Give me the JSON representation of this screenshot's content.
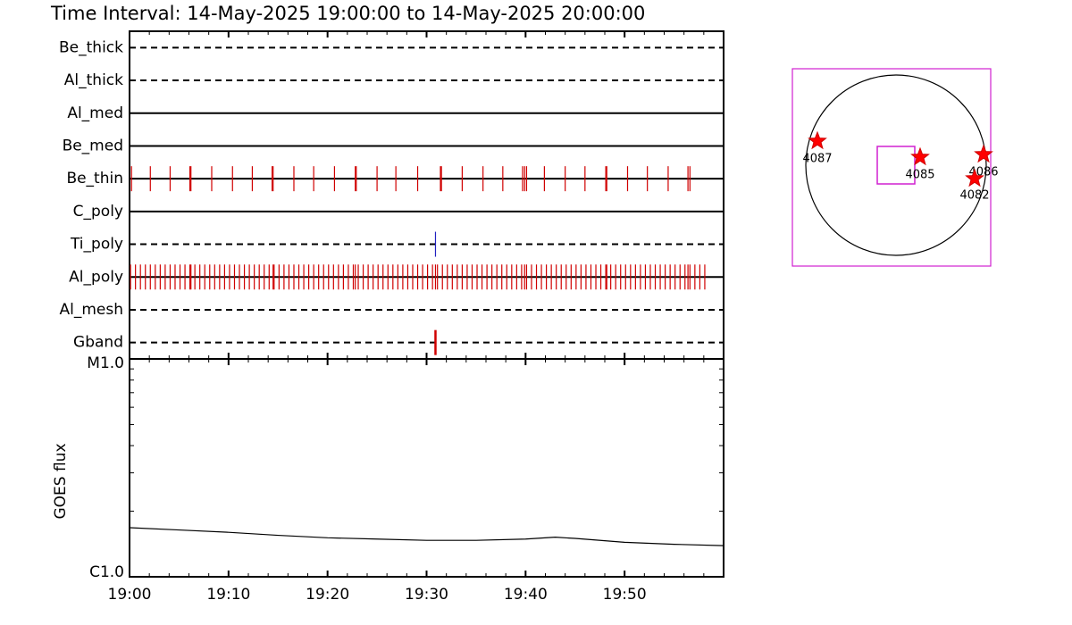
{
  "title": "Time Interval: 14-May-2025 19:00:00 to 14-May-2025 20:00:00",
  "chart_data": [
    {
      "type": "timeline",
      "xlim": [
        0,
        60
      ],
      "xticks": [
        {
          "value": 0,
          "label": "19:00"
        },
        {
          "value": 10,
          "label": "19:10"
        },
        {
          "value": 20,
          "label": "19:20"
        },
        {
          "value": 30,
          "label": "19:30"
        },
        {
          "value": 40,
          "label": "19:40"
        },
        {
          "value": 50,
          "label": "19:50"
        }
      ],
      "xminor_ticks": [
        2,
        4,
        6,
        8,
        12,
        14,
        16,
        18,
        22,
        24,
        26,
        28,
        32,
        34,
        36,
        38,
        42,
        44,
        46,
        48,
        52,
        54,
        56,
        58
      ],
      "rows": [
        {
          "name": "Be_thick",
          "dashed": true,
          "color": "#d00000",
          "events": []
        },
        {
          "name": "Al_thick",
          "dashed": true,
          "color": "#d00000",
          "events": []
        },
        {
          "name": "Al_med",
          "dashed": false,
          "color": "#d00000",
          "events": []
        },
        {
          "name": "Be_med",
          "dashed": false,
          "color": "#d00000",
          "events": []
        },
        {
          "name": "Be_thin",
          "dashed": false,
          "color": "#d00000",
          "events": [
            0.2,
            2.1,
            4.1,
            6.1,
            6.2,
            8.3,
            10.4,
            12.4,
            14.4,
            14.5,
            16.6,
            18.6,
            20.7,
            22.8,
            22.9,
            25.0,
            26.9,
            29.1,
            31.4,
            31.5,
            33.6,
            35.7,
            37.7,
            39.7,
            39.9,
            40.1,
            41.9,
            44.0,
            46.0,
            48.1,
            48.2,
            50.3,
            52.3,
            54.4,
            56.4,
            56.6
          ]
        },
        {
          "name": "C_poly",
          "dashed": false,
          "color": "#d00000",
          "events": []
        },
        {
          "name": "Ti_poly",
          "dashed": true,
          "color": "#2020c0",
          "events": [
            30.9
          ]
        },
        {
          "name": "Al_poly",
          "dashed": false,
          "color": "#d00000",
          "events": [
            0.1,
            0.6,
            1.1,
            1.6,
            2.1,
            2.6,
            3.1,
            3.6,
            4.1,
            4.6,
            5.1,
            5.6,
            6.1,
            6.2,
            6.6,
            7.1,
            7.6,
            8.1,
            8.6,
            9.1,
            9.6,
            10.1,
            10.6,
            11.1,
            11.6,
            12.1,
            12.6,
            13.1,
            13.6,
            14.1,
            14.5,
            14.6,
            15.1,
            15.6,
            16.1,
            16.6,
            17.1,
            17.6,
            18.1,
            18.6,
            19.1,
            19.6,
            20.1,
            20.6,
            21.1,
            21.6,
            22.1,
            22.6,
            22.8,
            23.1,
            23.6,
            24.1,
            24.6,
            25.1,
            25.6,
            26.1,
            26.6,
            27.1,
            27.6,
            28.1,
            28.6,
            29.1,
            29.6,
            30.1,
            30.6,
            30.9,
            31.1,
            31.6,
            32.1,
            32.6,
            33.1,
            33.6,
            34.1,
            34.6,
            35.1,
            35.6,
            36.1,
            36.6,
            37.1,
            37.6,
            38.1,
            38.6,
            39.1,
            39.6,
            39.9,
            40.1,
            40.6,
            41.1,
            41.6,
            42.1,
            42.6,
            43.1,
            43.6,
            44.1,
            44.6,
            45.1,
            45.6,
            46.1,
            46.6,
            47.1,
            47.6,
            48.1,
            48.2,
            48.6,
            49.1,
            49.6,
            50.1,
            50.6,
            51.1,
            51.6,
            52.1,
            52.6,
            53.1,
            53.6,
            54.1,
            54.6,
            55.1,
            55.6,
            56.1,
            56.4,
            56.6,
            57.1,
            57.6,
            58.1
          ]
        },
        {
          "name": "Al_mesh",
          "dashed": true,
          "color": "#d00000",
          "events": []
        },
        {
          "name": "Gband",
          "dashed": true,
          "color": "#d00000",
          "events": [
            30.9
          ]
        }
      ]
    },
    {
      "type": "line",
      "ylabel": "GOES flux",
      "log_y": true,
      "xlim": [
        0,
        60
      ],
      "xticks": [
        {
          "value": 0,
          "label": "19:00"
        },
        {
          "value": 10,
          "label": "19:10"
        },
        {
          "value": 20,
          "label": "19:20"
        },
        {
          "value": 30,
          "label": "19:30"
        },
        {
          "value": 40,
          "label": "19:40"
        },
        {
          "value": 50,
          "label": "19:50"
        }
      ],
      "xminor_ticks": [
        2,
        4,
        6,
        8,
        12,
        14,
        16,
        18,
        22,
        24,
        26,
        28,
        32,
        34,
        36,
        38,
        42,
        44,
        46,
        48,
        52,
        54,
        56,
        58
      ],
      "ylim": [
        1e-06,
        1e-05
      ],
      "yticks": [
        {
          "value": 1e-06,
          "label": "C1.0"
        },
        {
          "value": 1e-05,
          "label": "M1.0"
        }
      ],
      "yminor_ticks": [
        2e-06,
        3e-06,
        4e-06,
        5e-06,
        6e-06,
        7e-06,
        8e-06,
        9e-06
      ],
      "x": [
        0,
        5,
        10,
        15,
        20,
        25,
        30,
        35,
        40,
        43,
        45,
        50,
        55,
        60
      ],
      "values": [
        1.68e-06,
        1.64e-06,
        1.6e-06,
        1.55e-06,
        1.51e-06,
        1.49e-06,
        1.47e-06,
        1.47e-06,
        1.49e-06,
        1.52e-06,
        1.5e-06,
        1.44e-06,
        1.41e-06,
        1.39e-06
      ],
      "color": "#000000"
    }
  ],
  "map": {
    "regions": [
      "4087",
      "4085",
      "4086",
      "4082"
    ]
  }
}
